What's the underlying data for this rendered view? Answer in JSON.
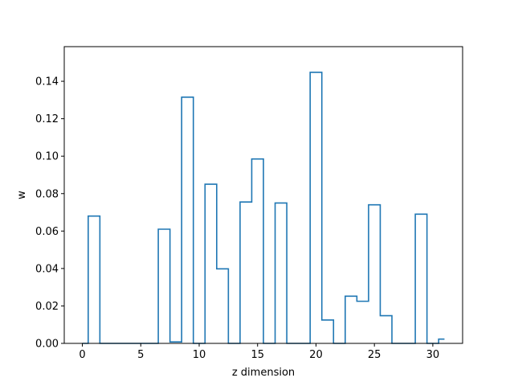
{
  "chart_data": {
    "type": "step",
    "title": "",
    "xlabel": "z dimension",
    "ylabel": "w",
    "xlim": [
      -1.55,
      32.55
    ],
    "ylim": [
      0,
      0.1585
    ],
    "grid": false,
    "legend": "none",
    "line_color": "#1f77b4",
    "x_ticks": [
      0,
      5,
      10,
      15,
      20,
      25,
      30
    ],
    "x_tick_labels": [
      "0",
      "5",
      "10",
      "15",
      "20",
      "25",
      "30"
    ],
    "y_ticks": [
      0,
      0.02,
      0.04,
      0.06,
      0.08,
      0.1,
      0.12,
      0.14
    ],
    "y_tick_labels": [
      "0.00",
      "0.02",
      "0.04",
      "0.06",
      "0.08",
      "0.10",
      "0.12",
      "0.14"
    ],
    "x": [
      0,
      1,
      2,
      3,
      4,
      5,
      6,
      7,
      8,
      9,
      10,
      11,
      12,
      13,
      14,
      15,
      16,
      17,
      18,
      19,
      20,
      21,
      22,
      23,
      24,
      25,
      26,
      27,
      28,
      29,
      30,
      31
    ],
    "values": [
      0.0,
      0.068,
      0.0,
      0.0,
      0.0,
      0.0,
      0.0,
      0.061,
      0.0008,
      0.1315,
      0.0,
      0.085,
      0.0398,
      0.0,
      0.0755,
      0.0985,
      0.0,
      0.075,
      0.0,
      0.0,
      0.1448,
      0.0125,
      0.0,
      0.0252,
      0.0225,
      0.074,
      0.0148,
      0.0,
      0.0,
      0.069,
      0.0,
      0.0023
    ]
  }
}
